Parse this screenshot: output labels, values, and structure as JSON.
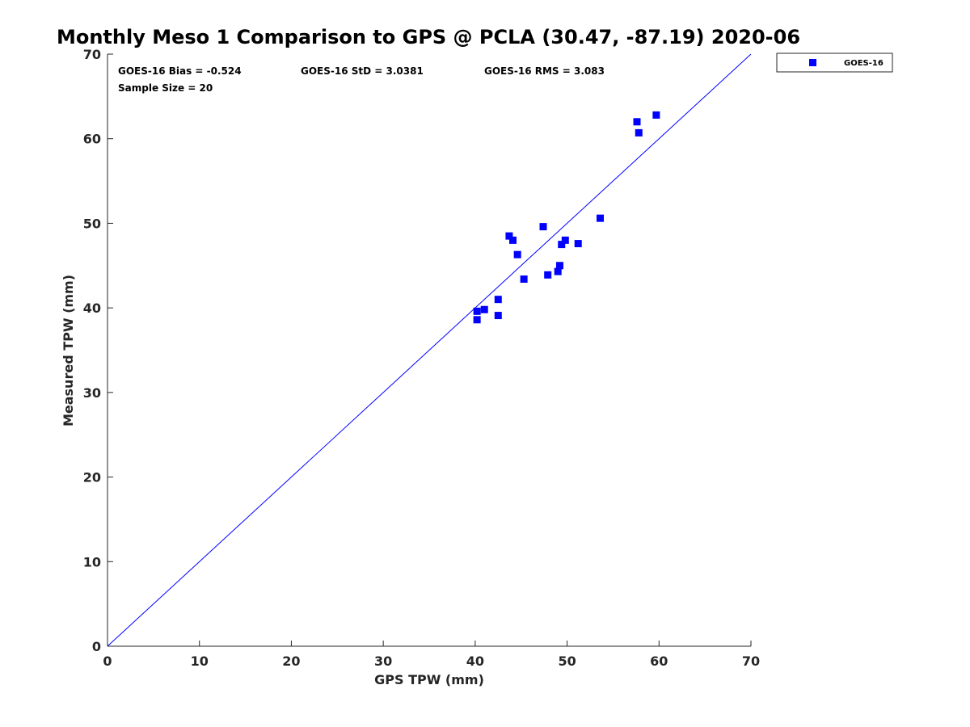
{
  "chart_data": {
    "type": "scatter",
    "title": "Monthly Meso 1 Comparison to GPS @ PCLA (30.47, -87.19) 2020-06",
    "xlabel": "GPS TPW (mm)",
    "ylabel": "Measured TPW (mm)",
    "xlim": [
      0,
      70
    ],
    "ylim": [
      0,
      70
    ],
    "xticks": [
      "0",
      "10",
      "20",
      "30",
      "40",
      "50",
      "60",
      "70"
    ],
    "yticks": [
      "0",
      "10",
      "20",
      "30",
      "40",
      "50",
      "60",
      "70"
    ],
    "grid": false,
    "legend_position": "top-right outside",
    "stats": {
      "bias": "GOES-16 Bias = -0.524",
      "std": "GOES-16 StD = 3.0381",
      "rms": "GOES-16 RMS = 3.083",
      "sample": "Sample Size = 20"
    },
    "reference_line": {
      "type": "identity",
      "color": "#0000ff"
    },
    "series": [
      {
        "name": "GOES-16",
        "color": "#0000ff",
        "marker": "square",
        "points": [
          [
            40.2,
            39.6
          ],
          [
            40.2,
            38.6
          ],
          [
            41.0,
            39.8
          ],
          [
            42.5,
            41.0
          ],
          [
            42.5,
            39.1
          ],
          [
            43.7,
            48.5
          ],
          [
            44.1,
            48.0
          ],
          [
            44.6,
            46.3
          ],
          [
            45.3,
            43.4
          ],
          [
            47.4,
            49.6
          ],
          [
            47.9,
            43.9
          ],
          [
            49.0,
            44.3
          ],
          [
            49.2,
            45.0
          ],
          [
            49.4,
            47.5
          ],
          [
            49.8,
            48.0
          ],
          [
            51.2,
            47.6
          ],
          [
            53.6,
            50.6
          ],
          [
            57.6,
            62.0
          ],
          [
            57.8,
            60.7
          ],
          [
            59.7,
            62.8
          ]
        ]
      }
    ]
  }
}
